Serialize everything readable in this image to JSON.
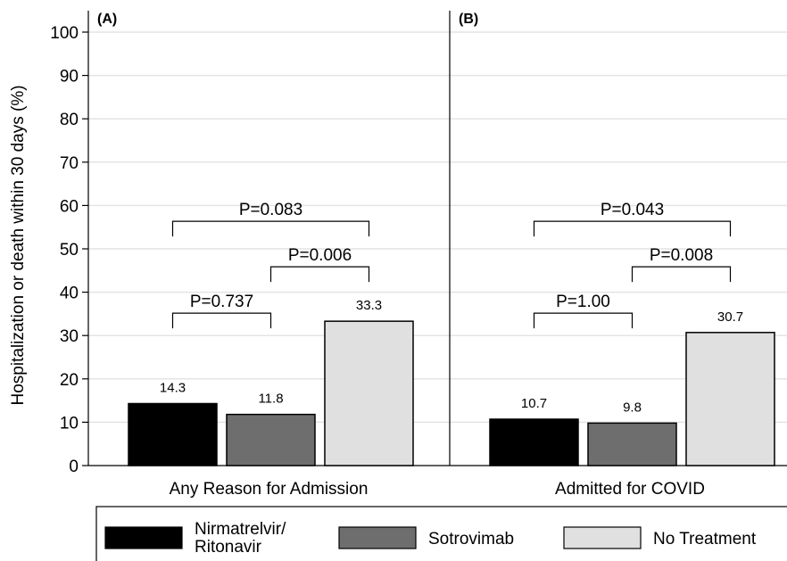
{
  "chart_data": {
    "type": "bar",
    "ylabel": "Hospitalization or death within 30 days (%)",
    "ylim": [
      0,
      100
    ],
    "yticks": [
      0,
      10,
      20,
      30,
      40,
      50,
      60,
      70,
      80,
      90,
      100
    ],
    "grid": true,
    "legend_position": "bottom",
    "series": [
      {
        "name": "Nirmatrelvir/ Ritonavir",
        "legend_lines": [
          "Nirmatrelvir/",
          "Ritonavir"
        ],
        "color": "#000000"
      },
      {
        "name": "Sotrovimab",
        "legend_lines": [
          "Sotrovimab"
        ],
        "color": "#6e6e6e"
      },
      {
        "name": "No Treatment",
        "legend_lines": [
          "No Treatment"
        ],
        "color": "#e0e0e0"
      }
    ],
    "panels": [
      {
        "panel_label": "(A)",
        "category": "Any Reason for Admission",
        "values": [
          14.3,
          11.8,
          33.3
        ],
        "value_labels": [
          "14.3",
          "11.8",
          "33.3"
        ],
        "comparisons": [
          {
            "between": [
              0,
              1
            ],
            "label": "P=0.737",
            "level": 33.3
          },
          {
            "between": [
              1,
              2
            ],
            "label": "P=0.006",
            "level": 44
          },
          {
            "between": [
              0,
              2
            ],
            "label": "P=0.083",
            "level": 54.5
          }
        ]
      },
      {
        "panel_label": "(B)",
        "category": "Admitted for COVID",
        "values": [
          10.7,
          9.8,
          30.7
        ],
        "value_labels": [
          "10.7",
          "9.8",
          "30.7"
        ],
        "comparisons": [
          {
            "between": [
              0,
              1
            ],
            "label": "P=1.00",
            "level": 33.3
          },
          {
            "between": [
              1,
              2
            ],
            "label": "P=0.008",
            "level": 44
          },
          {
            "between": [
              0,
              2
            ],
            "label": "P=0.043",
            "level": 54.5
          }
        ]
      }
    ]
  }
}
